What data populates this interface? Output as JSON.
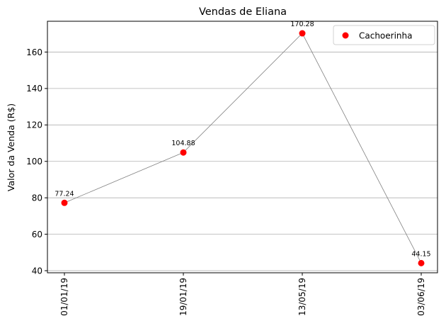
{
  "chart_data": {
    "type": "scatter",
    "title": "Vendas de Eliana",
    "xlabel": "",
    "ylabel": "Valor da Venda (R$)",
    "categories": [
      "01/01/19",
      "19/01/19",
      "13/05/19",
      "03/06/19"
    ],
    "series": [
      {
        "name": "Cachoerinha",
        "values": [
          77.24,
          104.88,
          170.28,
          44.15
        ],
        "data_labels": [
          "77.24",
          "104.88",
          "170.28",
          "44.15"
        ],
        "marker_color": "#ff0000",
        "line_color": "#808080"
      }
    ],
    "ylim": [
      38.85,
      176.9
    ],
    "yticks": [
      40,
      60,
      80,
      100,
      120,
      140,
      160
    ],
    "grid": "y",
    "legend_position": "top-right"
  }
}
